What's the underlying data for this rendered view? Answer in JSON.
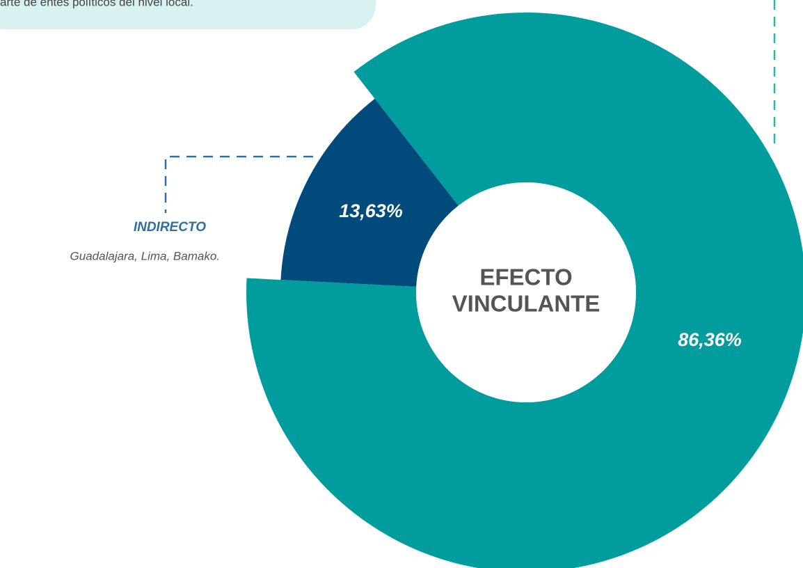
{
  "chart_data": {
    "type": "donut",
    "categories": [
      null,
      "INDIRECTO"
    ],
    "values": [
      86.36,
      13.63
    ],
    "value_labels": [
      "86,36%",
      "13,63%"
    ],
    "colors": [
      "#009c9e",
      "#004a7c"
    ],
    "center_label": [
      "EFECTO",
      "VINCULANTE"
    ],
    "annotations": [
      "arte de entes políticos del nivel local.",
      "Guadalajara, Lima, Bamako."
    ]
  }
}
